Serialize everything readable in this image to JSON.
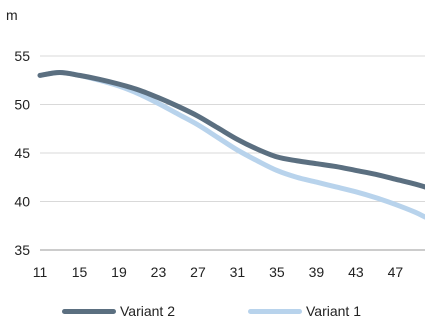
{
  "chart_data": {
    "type": "line",
    "ylabel": "m",
    "ylim": [
      35,
      55
    ],
    "xlim": [
      11,
      50
    ],
    "y_ticks": [
      "35",
      "40",
      "45",
      "50",
      "55"
    ],
    "x_ticks": [
      "11",
      "15",
      "19",
      "23",
      "27",
      "31",
      "35",
      "39",
      "43",
      "47"
    ],
    "grid": "horizontal",
    "legend_position": "bottom",
    "x": [
      11,
      13,
      15,
      17,
      19,
      21,
      23,
      25,
      27,
      29,
      31,
      33,
      35,
      37,
      39,
      41,
      43,
      45,
      47,
      49,
      50
    ],
    "series": [
      {
        "name": "Variant 2",
        "color": "#5b6f80",
        "values": [
          53.0,
          53.3,
          53.0,
          52.6,
          52.1,
          51.5,
          50.7,
          49.8,
          48.8,
          47.6,
          46.4,
          45.4,
          44.6,
          44.2,
          43.9,
          43.6,
          43.2,
          42.8,
          42.3,
          41.8,
          41.5
        ]
      },
      {
        "name": "Variant 1",
        "color": "#b8d3ec",
        "values": [
          53.0,
          53.3,
          53.0,
          52.5,
          51.9,
          51.1,
          50.1,
          49.0,
          47.9,
          46.6,
          45.3,
          44.2,
          43.2,
          42.5,
          42.0,
          41.5,
          41.0,
          40.4,
          39.7,
          38.9,
          38.4
        ]
      }
    ]
  }
}
